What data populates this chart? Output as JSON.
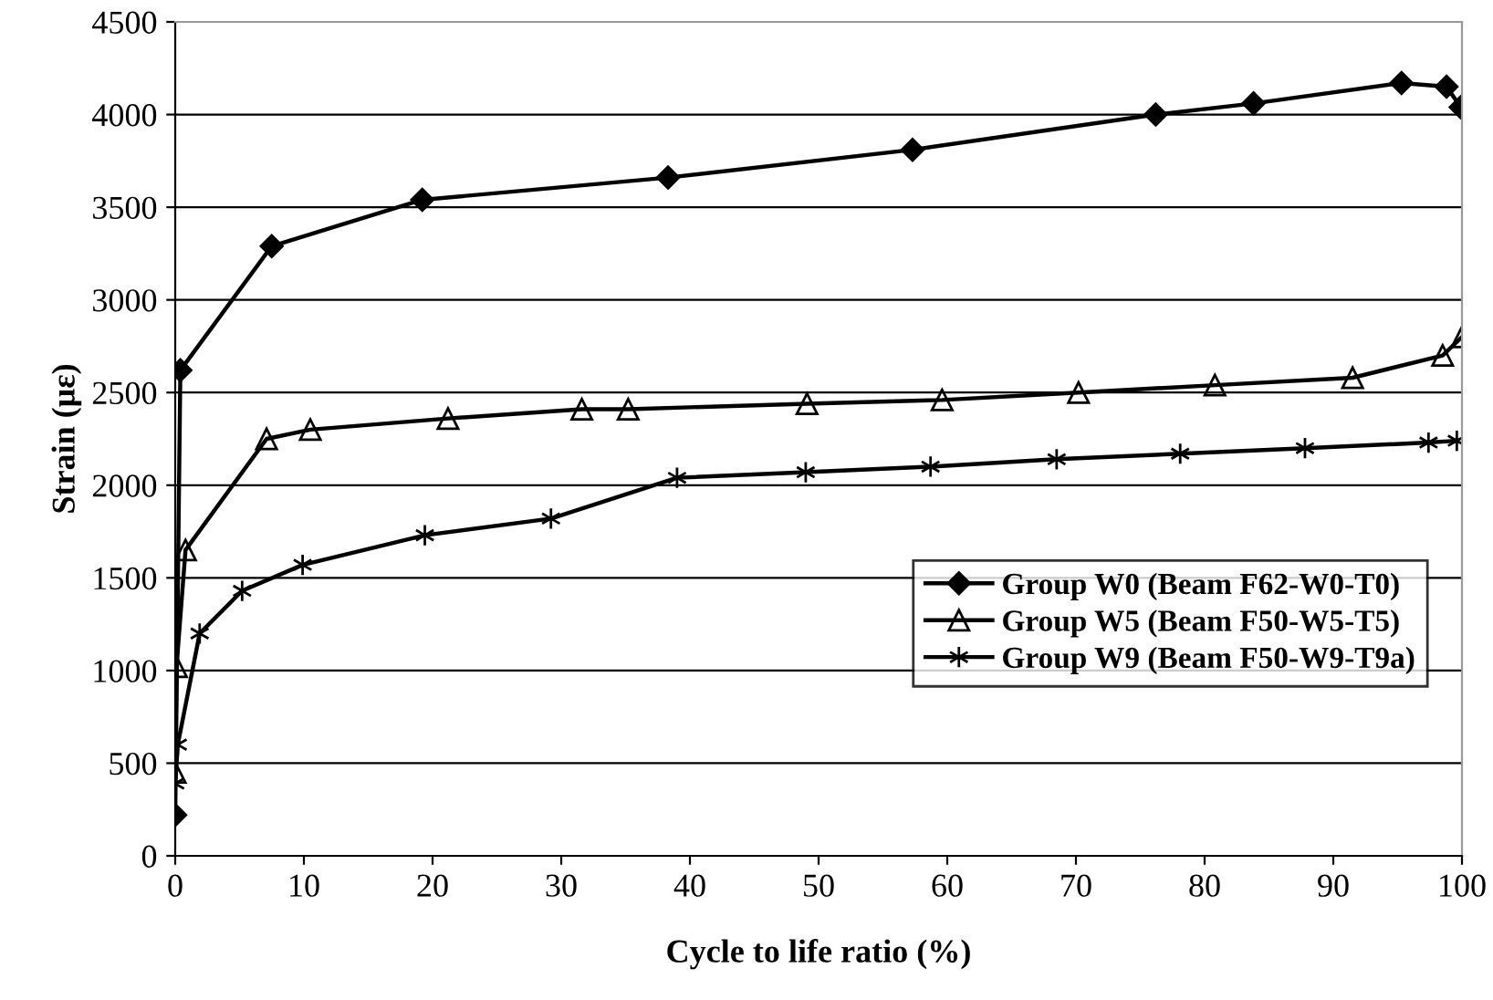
{
  "chart_data": {
    "type": "line",
    "xlabel": "Cycle to life ratio (%)",
    "ylabel": "Strain (με)",
    "xlim": [
      0,
      100
    ],
    "xticks": [
      0,
      10,
      20,
      30,
      40,
      50,
      60,
      70,
      80,
      90,
      100
    ],
    "ylim": [
      0,
      4500
    ],
    "yticks": [
      0,
      500,
      1000,
      1500,
      2000,
      2500,
      3000,
      3500,
      4000,
      4500
    ],
    "grid": "y",
    "legend": "bottom right",
    "line_style": "solid",
    "series": [
      {
        "name": "Group W0 (Beam F62-W0-T0)",
        "color": "#000000",
        "marker": "diamond",
        "x": [
          0,
          0.4,
          7.5,
          19.2,
          38.3,
          57.3,
          76.2,
          83.8,
          95.3,
          98.8,
          99.9
        ],
        "values": [
          220,
          2620,
          3290,
          3540,
          3660,
          3810,
          4000,
          4060,
          4170,
          4150,
          4040
        ]
      },
      {
        "name": "Group W5 (Beam F50-W5-T5)",
        "color": "#000000",
        "marker": "triangle",
        "x": [
          0,
          0.1,
          0.8,
          7.1,
          10.5,
          21.2,
          31.6,
          35.2,
          49.1,
          59.6,
          70.2,
          80.8,
          91.5,
          98.5,
          100
        ],
        "values": [
          450,
          1020,
          1650,
          2250,
          2300,
          2360,
          2410,
          2410,
          2440,
          2460,
          2500,
          2540,
          2580,
          2700,
          2800
        ]
      },
      {
        "name": "Group W9 (Beam F50-W9-T9a)",
        "color": "#000000",
        "marker": "cross",
        "x": [
          0,
          0.2,
          1.9,
          5.2,
          9.9,
          19.4,
          29.2,
          39,
          49,
          58.7,
          68.5,
          78.1,
          87.8,
          97.4,
          99.6
        ],
        "values": [
          390,
          600,
          1200,
          1430,
          1570,
          1730,
          1820,
          2040,
          2070,
          2100,
          2140,
          2170,
          2200,
          2230,
          2240
        ]
      }
    ]
  }
}
